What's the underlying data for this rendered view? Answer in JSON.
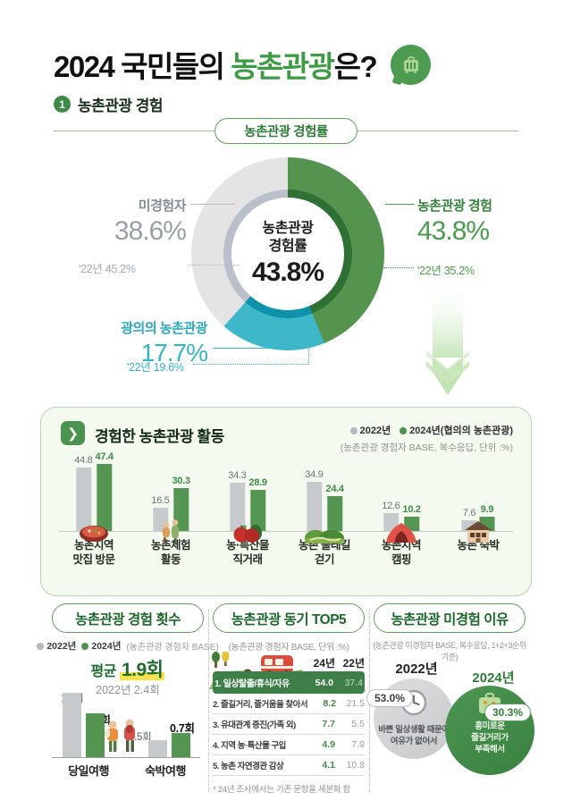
{
  "header": {
    "title_prefix": "2024 국민들의 ",
    "title_highlight": "농촌관광",
    "title_suffix": "은?",
    "section_number": "1",
    "section_title": "농촌관광 경험"
  },
  "divider_pill": "농촌관광 경험률",
  "donut": {
    "center_line1": "농촌관광",
    "center_line2": "경험률",
    "center_value": "43.8%",
    "right_label": "농촌관광 경험",
    "right_value": "43.8%",
    "right_prev": "'22년 35.2%",
    "left_label": "미경험자",
    "left_value": "38.6%",
    "left_prev": "'22년 45.2%",
    "bottom_label": "광의의 농촌관광",
    "bottom_value": "17.7%",
    "bottom_prev": "'22년 19.6%"
  },
  "activity": {
    "title": "경험한 농촌관광 활동",
    "legend_2022": "2022년",
    "legend_2024": "2024년(협의의 농촌관광)",
    "note": "(농촌관광 경험자 BASE, 복수응답, 단위 :%)",
    "categories": [
      "농촌지역\n맛집 방문",
      "농촌체험\n활동",
      "농·특산물\n직거래",
      "농촌 둘레길\n걷기",
      "농촌지역\n캠핑",
      "농촌 숙박"
    ]
  },
  "trips": {
    "title": "농촌관광 경험 횟수",
    "legend_2022": "2022년",
    "legend_2024": "2024년",
    "legend_note": "(농촌관광 경험자 BASE)",
    "avg_prefix": "평균 ",
    "avg_value": "1.9회",
    "prev_avg": "2022년 2.4회",
    "labels": {
      "day_2022": "1.9회",
      "day_2024": "1.3회",
      "stay_2022": "0.5회",
      "stay_2024": "0.7회"
    },
    "cat_day": "당일여행",
    "cat_stay": "숙박여행"
  },
  "motivation": {
    "title": "농촌관광 동기 TOP5",
    "note": "(농촌관광 경험자 BASE, 단위 :%)",
    "col_2024": "24년",
    "col_2022": "22년",
    "rows": [
      {
        "label": "1. 일상탈출/휴식/자유",
        "v2024": "54.0",
        "v2022": "37.4"
      },
      {
        "label": "2. 즐길거리, 즐거움을 찾아서",
        "v2024": "8.2",
        "v2022": "21.5"
      },
      {
        "label": "3. 유대관계 증진(가족 외)",
        "v2024": "7.7",
        "v2022": "5.5"
      },
      {
        "label": "4. 지역 농·특산물 구입",
        "v2024": "4.9",
        "v2022": "7.9"
      },
      {
        "label": "5. 농촌 자연경관 감상",
        "v2024": "4.1",
        "v2022": "10.8"
      }
    ],
    "footnote": "* 24년 조사에서는 기존 문항을 세분화 함"
  },
  "nonexperience": {
    "title": "농촌관광 미경험 이유",
    "note": "(농촌관광 미경험자 BASE, 복수응답, 1+2+3순위 기준)",
    "y2022": {
      "year": "2022년",
      "value": "53.0%",
      "reason": "바쁜 일상생활 때문에\n여유가 없어서"
    },
    "y2024": {
      "year": "2024년",
      "value": "30.3%",
      "reason": "흥미로운\n즐길거리가\n부족해서"
    }
  },
  "colors": {
    "brand_green": "#3f9a45",
    "donut_green": "#54944f",
    "donut_green_inner": "#2f7135",
    "donut_teal": "#3eb8c9",
    "donut_teal_inner": "#0e92ac",
    "donut_gray": "#e3e4e3",
    "donut_gray_inner": "#b9c0ca",
    "bar_gray": "#c6cacc",
    "bar_green": "#559552",
    "highlight_row_green": "#3e7e48",
    "highlight_yellow": "#f7e34d"
  },
  "chart_data": [
    {
      "type": "pie",
      "title": "농촌관광 경험률",
      "center_value": 43.8,
      "slices": [
        {
          "label": "농촌관광 경험",
          "value": 43.8,
          "prev_2022": 35.2,
          "color": "#54944f",
          "inner_color": "#2f7135"
        },
        {
          "label": "광의의 농촌관광",
          "value": 17.7,
          "prev_2022": 19.6,
          "color": "#3eb8c9",
          "inner_color": "#0e92ac"
        },
        {
          "label": "미경험자",
          "value": 38.6,
          "prev_2022": 45.2,
          "color": "#e3e4e3",
          "inner_color": "#b9c0ca"
        }
      ]
    },
    {
      "type": "bar",
      "title": "경험한 농촌관광 활동",
      "unit": "%",
      "note": "농촌관광 경험자 BASE, 복수응답",
      "categories": [
        "농촌지역 맛집 방문",
        "농촌체험 활동",
        "농·특산물 직거래",
        "농촌 둘레길 걷기",
        "농촌지역 캠핑",
        "농촌 숙박"
      ],
      "series": [
        {
          "name": "2022년",
          "values": [
            44.8,
            16.5,
            34.3,
            34.9,
            12.6,
            7.6
          ]
        },
        {
          "name": "2024년(협의의 농촌관광)",
          "values": [
            47.4,
            30.3,
            28.9,
            24.4,
            10.2,
            9.9
          ]
        }
      ],
      "legend_position": "top-right",
      "grid": false
    },
    {
      "type": "bar",
      "title": "농촌관광 경험 횟수",
      "unit": "회",
      "average_2024": 1.9,
      "average_2022": 2.4,
      "categories": [
        "당일여행",
        "숙박여행"
      ],
      "series": [
        {
          "name": "2022년",
          "values": [
            1.9,
            0.5
          ]
        },
        {
          "name": "2024년",
          "values": [
            1.3,
            0.7
          ]
        }
      ]
    },
    {
      "type": "table",
      "title": "농촌관광 동기 TOP5",
      "unit": "%",
      "columns": [
        "동기",
        "24년",
        "22년"
      ],
      "rows": [
        [
          "1. 일상탈출/휴식/자유",
          54.0,
          37.4
        ],
        [
          "2. 즐길거리, 즐거움을 찾아서",
          8.2,
          21.5
        ],
        [
          "3. 유대관계 증진(가족 외)",
          7.7,
          5.5
        ],
        [
          "4. 지역 농·특산물 구입",
          4.9,
          7.9
        ],
        [
          "5. 농촌 자연경관 감상",
          4.1,
          10.8
        ]
      ]
    },
    {
      "type": "pie",
      "title": "농촌관광 미경험 이유",
      "slices": [
        {
          "label": "2022년 바쁜 일상생활 때문에 여유가 없어서",
          "value": 53.0
        },
        {
          "label": "2024년 흥미로운 즐길거리가 부족해서",
          "value": 30.3
        }
      ]
    }
  ]
}
